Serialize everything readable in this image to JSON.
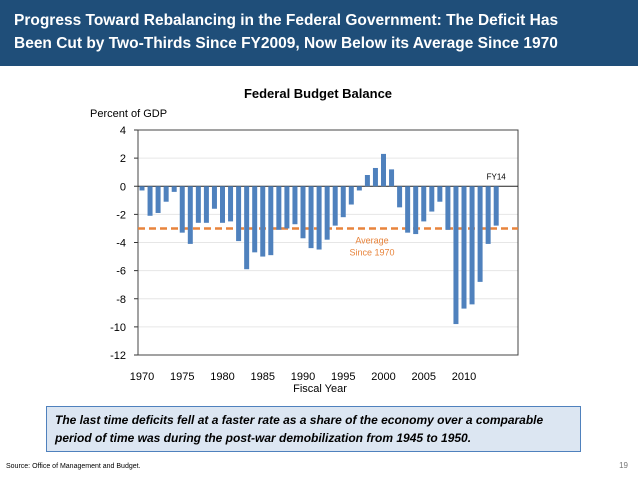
{
  "header": {
    "line1": "Progress Toward Rebalancing in the Federal Government: The Deficit Has",
    "line2": "Been Cut by Two-Thirds Since FY2009, Now Below its Average Since 1970"
  },
  "chart_data": {
    "type": "bar",
    "title": "Federal Budget Balance",
    "ylabel": "Percent of GDP",
    "xlabel": "Fiscal Year",
    "ylim": [
      -12,
      4
    ],
    "yticks": [
      4,
      2,
      0,
      -2,
      -4,
      -6,
      -8,
      -10,
      -12
    ],
    "xticks": [
      1970,
      1975,
      1980,
      1985,
      1990,
      1995,
      2000,
      2005,
      2010
    ],
    "x": [
      1970,
      1971,
      1972,
      1973,
      1974,
      1975,
      1976,
      1977,
      1978,
      1979,
      1980,
      1981,
      1982,
      1983,
      1984,
      1985,
      1986,
      1987,
      1988,
      1989,
      1990,
      1991,
      1992,
      1993,
      1994,
      1995,
      1996,
      1997,
      1998,
      1999,
      2000,
      2001,
      2002,
      2003,
      2004,
      2005,
      2006,
      2007,
      2008,
      2009,
      2010,
      2011,
      2012,
      2013,
      2014
    ],
    "values": [
      -0.3,
      -2.1,
      -1.9,
      -1.1,
      -0.4,
      -3.3,
      -4.1,
      -2.6,
      -2.6,
      -1.6,
      -2.6,
      -2.5,
      -3.9,
      -5.9,
      -4.7,
      -5.0,
      -4.9,
      -3.1,
      -3.0,
      -2.7,
      -3.7,
      -4.4,
      -4.5,
      -3.8,
      -2.8,
      -2.2,
      -1.3,
      -0.3,
      0.8,
      1.3,
      2.3,
      1.2,
      -1.5,
      -3.3,
      -3.4,
      -2.5,
      -1.8,
      -1.1,
      -3.1,
      -9.8,
      -8.7,
      -8.4,
      -6.8,
      -4.1,
      -2.8
    ],
    "average": {
      "value": -3.0,
      "label1": "Average",
      "label2": "Since 1970"
    },
    "annotation": "FY14",
    "bar_color": "#4f81bd",
    "average_color": "#e8843c",
    "grid": true
  },
  "callout": {
    "line1": "The last time deficits fell at a faster rate as a share of the economy over a comparable",
    "line2": "period of time was during the post-war demobilization from 1945 to 1950."
  },
  "source": "Source: Office of Management and Budget.",
  "page_number": "19"
}
